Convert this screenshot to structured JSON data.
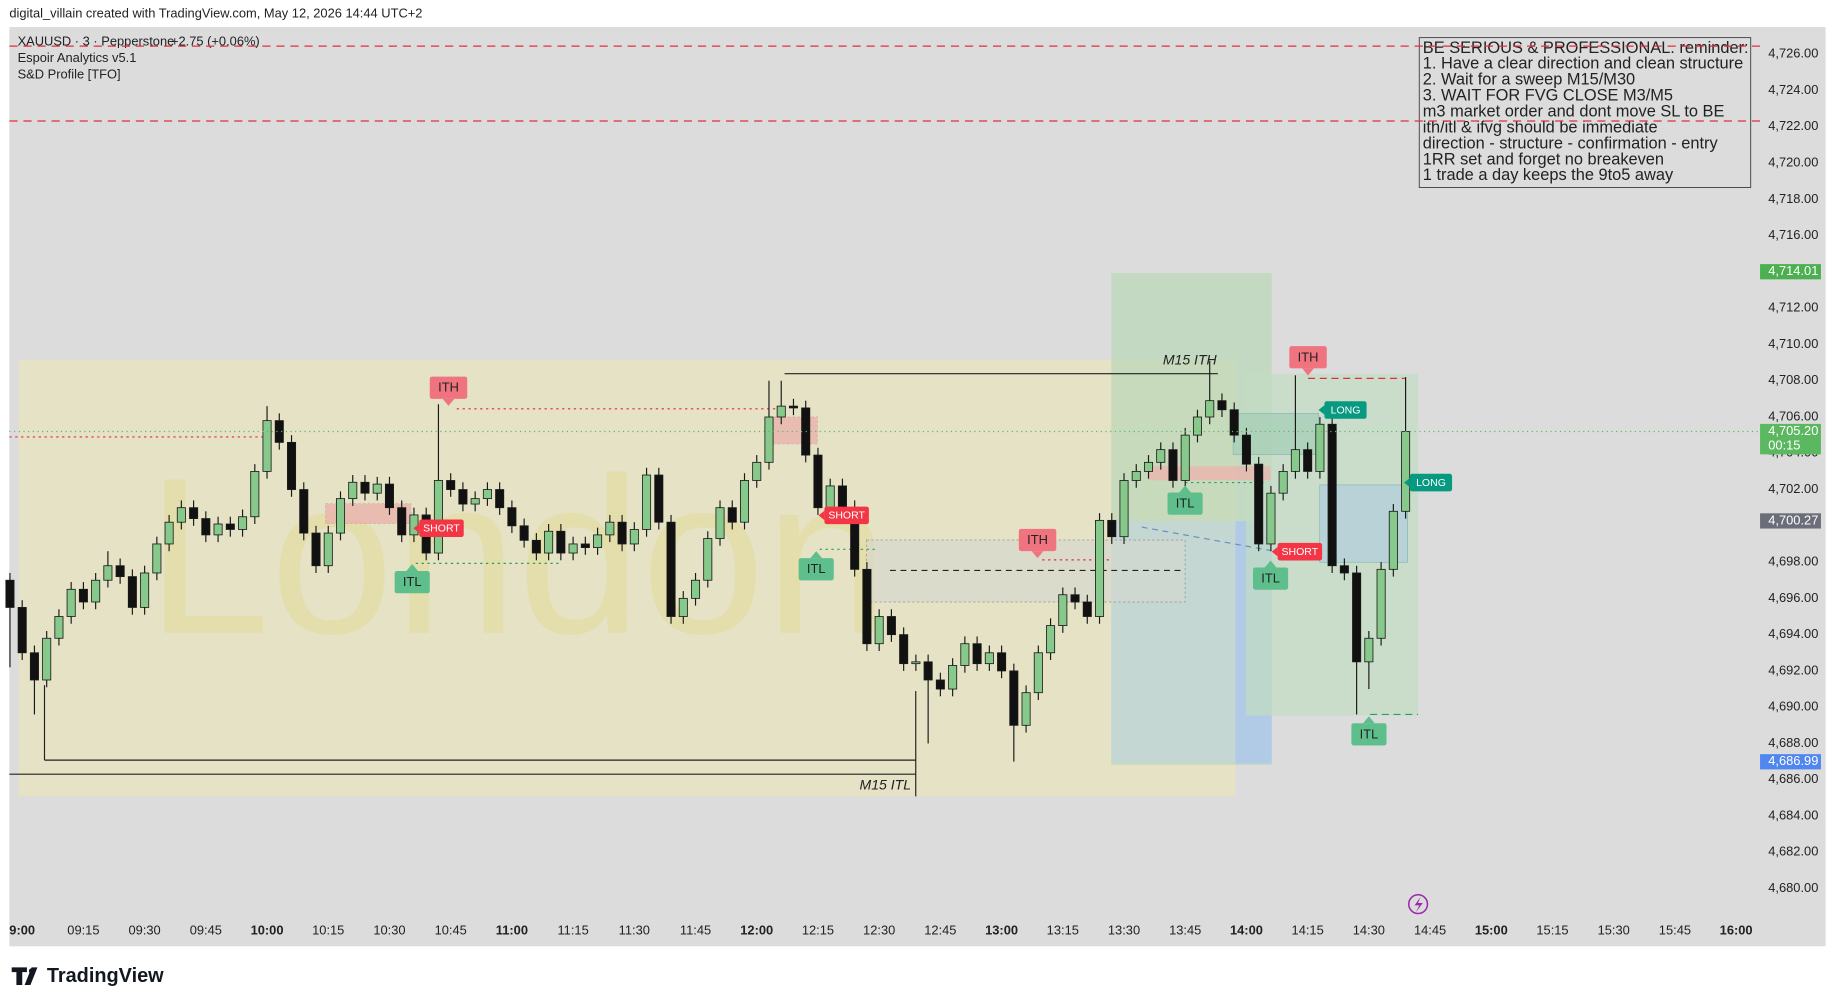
{
  "header": "digital_villain created with TradingView.com, May 12, 2026 14:44 UTC+2",
  "legend": {
    "symbol": "XAUUSD · 3 · Pepperstone",
    "change": "+2.75 (+0.06%)",
    "indicators": [
      "Espoir Analytics v5.1",
      "S&D Profile [TFO]"
    ]
  },
  "brand": "TradingView",
  "chart_data": {
    "type": "candlestick",
    "x": [
      "08:57",
      "09:00",
      "09:03",
      "09:06",
      "09:09",
      "09:12",
      "09:15",
      "09:18",
      "09:21",
      "09:24",
      "09:27",
      "09:30",
      "09:33",
      "09:36",
      "09:39",
      "09:42",
      "09:45",
      "09:48",
      "09:51",
      "09:54",
      "09:57",
      "10:00",
      "10:03",
      "10:06",
      "10:09",
      "10:12",
      "10:15",
      "10:18",
      "10:21",
      "10:24",
      "10:27",
      "10:30",
      "10:33",
      "10:36",
      "10:39",
      "10:42",
      "10:45",
      "10:48",
      "10:51",
      "10:54",
      "10:57",
      "11:00",
      "11:03",
      "11:06",
      "11:09",
      "11:12",
      "11:15",
      "11:18",
      "11:21",
      "11:24",
      "11:27",
      "11:30",
      "11:33",
      "11:36",
      "11:39",
      "11:42",
      "11:45",
      "11:48",
      "11:51",
      "11:54",
      "11:57",
      "12:00",
      "12:03",
      "12:06",
      "12:09",
      "12:12",
      "12:15",
      "12:18",
      "12:21",
      "12:24",
      "12:27",
      "12:30",
      "12:33",
      "12:36",
      "12:39",
      "12:42",
      "12:45",
      "12:48",
      "12:51",
      "12:54",
      "12:57",
      "13:00",
      "13:03",
      "13:06",
      "13:09",
      "13:12",
      "13:15",
      "13:18",
      "13:21",
      "13:24",
      "13:27",
      "13:30",
      "13:33",
      "13:36",
      "13:39",
      "13:42",
      "13:45",
      "13:48",
      "13:51",
      "13:54",
      "13:57",
      "14:00",
      "14:03",
      "14:06",
      "14:09",
      "14:12",
      "14:15",
      "14:18",
      "14:21",
      "14:24",
      "14:27",
      "14:30",
      "14:33",
      "14:36",
      "14:39"
    ],
    "open": [
      4697.0,
      4695.5,
      4693.0,
      4691.5,
      4693.8,
      4695.0,
      4696.5,
      4695.8,
      4697.0,
      4697.8,
      4697.2,
      4695.5,
      4697.4,
      4699.0,
      4700.2,
      4701.0,
      4700.4,
      4699.5,
      4700.1,
      4699.8,
      4700.5,
      4703.0,
      4705.8,
      4704.6,
      4702.0,
      4699.6,
      4697.8,
      4699.6,
      4701.5,
      4702.4,
      4701.8,
      4702.3,
      4701.0,
      4699.5,
      4700.6,
      4698.5,
      4702.5,
      4702.0,
      4701.2,
      4701.5,
      4702.0,
      4701.0,
      4700.0,
      4699.2,
      4698.5,
      4699.7,
      4698.5,
      4699.0,
      4698.8,
      4699.5,
      4700.2,
      4699.0,
      4699.8,
      4702.8,
      4700.2,
      4695.0,
      4696.0,
      4697.0,
      4699.3,
      4701.0,
      4700.2,
      4702.5,
      4703.5,
      4706.0,
      4706.6,
      4706.5,
      4703.9,
      4701.0,
      4702.2,
      4701.0,
      4697.6,
      4693.5,
      4695.0,
      4694.0,
      4692.4,
      4692.5,
      4691.5,
      4691.0,
      4692.3,
      4693.5,
      4692.4,
      4693.0,
      4692.0,
      4689.0,
      4690.8,
      4693.0,
      4694.5,
      4696.2,
      4695.8,
      4695.0,
      4700.3,
      4699.4,
      4702.5,
      4703.0,
      4703.5,
      4704.2,
      4702.5,
      4705.0,
      4706.0,
      4706.9,
      4706.4,
      4705.0,
      4703.4,
      4699.0,
      4701.8,
      4703.0,
      4704.2,
      4703.0,
      4705.6,
      4697.8,
      4697.4,
      4692.5,
      4693.8,
      4697.6,
      4700.8
    ],
    "high": [
      4697.4,
      4695.9,
      4693.4,
      4694.2,
      4695.4,
      4696.9,
      4696.9,
      4697.4,
      4698.6,
      4698.2,
      4697.6,
      4697.8,
      4699.4,
      4700.6,
      4701.4,
      4701.4,
      4700.8,
      4700.5,
      4700.5,
      4700.9,
      4703.4,
      4706.6,
      4706.2,
      4705.0,
      4702.4,
      4700.0,
      4700.0,
      4701.9,
      4702.8,
      4702.8,
      4702.7,
      4702.7,
      4701.4,
      4701.0,
      4701.0,
      4706.7,
      4702.9,
      4702.4,
      4701.9,
      4702.4,
      4702.4,
      4701.4,
      4700.4,
      4699.6,
      4700.1,
      4700.1,
      4699.4,
      4699.4,
      4699.9,
      4700.6,
      4700.6,
      4700.2,
      4703.2,
      4703.2,
      4700.6,
      4696.4,
      4697.4,
      4699.7,
      4701.4,
      4701.4,
      4702.9,
      4703.9,
      4708.0,
      4708.0,
      4707.0,
      4706.9,
      4704.3,
      4702.6,
      4702.6,
      4701.4,
      4698.0,
      4695.4,
      4695.4,
      4694.4,
      4692.9,
      4692.9,
      4691.9,
      4692.7,
      4693.9,
      4693.9,
      4693.4,
      4693.4,
      4692.4,
      4691.2,
      4693.4,
      4694.9,
      4696.6,
      4696.6,
      4696.2,
      4700.7,
      4700.7,
      4702.9,
      4703.4,
      4703.9,
      4704.6,
      4704.6,
      4705.4,
      4706.4,
      4709.1,
      4707.3,
      4706.8,
      4705.4,
      4703.8,
      4702.2,
      4703.4,
      4708.3,
      4704.6,
      4706.0,
      4706.0,
      4698.2,
      4697.8,
      4694.2,
      4698.0,
      4701.2,
      4708.2
    ],
    "low": [
      4692.2,
      4692.6,
      4689.6,
      4691.1,
      4693.4,
      4694.6,
      4695.4,
      4695.4,
      4696.6,
      4696.8,
      4695.1,
      4695.1,
      4697.0,
      4698.6,
      4699.8,
      4700.0,
      4699.1,
      4699.1,
      4699.4,
      4699.4,
      4700.1,
      4702.6,
      4704.2,
      4701.6,
      4699.2,
      4697.4,
      4697.4,
      4699.2,
      4701.1,
      4701.4,
      4701.4,
      4700.6,
      4699.1,
      4699.1,
      4698.1,
      4698.1,
      4701.6,
      4700.8,
      4700.8,
      4701.1,
      4700.6,
      4699.6,
      4698.8,
      4698.1,
      4698.1,
      4698.1,
      4698.1,
      4698.4,
      4698.4,
      4699.1,
      4698.6,
      4698.6,
      4699.4,
      4699.8,
      4694.6,
      4694.6,
      4695.6,
      4696.6,
      4698.9,
      4699.8,
      4699.8,
      4702.1,
      4703.1,
      4705.6,
      4706.1,
      4703.5,
      4700.6,
      4700.6,
      4700.6,
      4697.2,
      4693.1,
      4693.1,
      4693.6,
      4692.0,
      4692.0,
      4688.0,
      4690.6,
      4690.6,
      4691.9,
      4692.0,
      4692.0,
      4691.6,
      4687.0,
      4688.6,
      4690.4,
      4692.6,
      4694.1,
      4695.4,
      4694.6,
      4694.6,
      4699.0,
      4699.0,
      4702.1,
      4702.6,
      4703.1,
      4702.1,
      4702.1,
      4704.6,
      4705.6,
      4706.0,
      4704.6,
      4703.0,
      4698.6,
      4698.6,
      4701.4,
      4702.6,
      4702.6,
      4702.6,
      4697.4,
      4697.0,
      4689.6,
      4691.0,
      4693.4,
      4697.2,
      4700.4
    ],
    "close": [
      4695.5,
      4693.0,
      4691.5,
      4693.8,
      4695.0,
      4696.5,
      4695.8,
      4697.0,
      4697.8,
      4697.2,
      4695.5,
      4697.4,
      4699.0,
      4700.2,
      4701.0,
      4700.4,
      4699.5,
      4700.1,
      4699.8,
      4700.5,
      4703.0,
      4705.8,
      4704.6,
      4702.0,
      4699.6,
      4697.8,
      4699.6,
      4701.5,
      4702.4,
      4701.8,
      4702.3,
      4701.0,
      4699.5,
      4700.6,
      4698.5,
      4702.5,
      4702.0,
      4701.2,
      4701.5,
      4702.0,
      4701.0,
      4700.0,
      4699.2,
      4698.5,
      4699.7,
      4698.5,
      4699.0,
      4698.8,
      4699.5,
      4700.2,
      4699.0,
      4699.8,
      4702.8,
      4700.2,
      4695.0,
      4696.0,
      4697.0,
      4699.3,
      4701.0,
      4700.2,
      4702.5,
      4703.5,
      4706.0,
      4706.6,
      4706.5,
      4703.9,
      4701.0,
      4702.2,
      4701.0,
      4697.6,
      4693.5,
      4695.0,
      4694.0,
      4692.4,
      4692.5,
      4691.5,
      4691.0,
      4692.3,
      4693.5,
      4692.4,
      4693.0,
      4692.0,
      4689.0,
      4690.8,
      4693.0,
      4694.5,
      4696.2,
      4695.8,
      4695.0,
      4700.3,
      4699.4,
      4702.5,
      4703.0,
      4703.5,
      4704.2,
      4702.5,
      4705.0,
      4706.0,
      4706.9,
      4706.4,
      4705.0,
      4703.4,
      4699.0,
      4701.8,
      4703.0,
      4704.2,
      4703.0,
      4705.6,
      4697.8,
      4697.4,
      4692.5,
      4693.8,
      4697.6,
      4700.8,
      4705.2
    ],
    "up_color": "#86c98a",
    "down_color": "#111111",
    "wick_color": "#1a1a1a",
    "xlim": [
      "08:57",
      "16:05"
    ],
    "xticks": [
      "9:00",
      "09:15",
      "09:30",
      "09:45",
      "10:00",
      "10:15",
      "10:30",
      "10:45",
      "11:00",
      "11:15",
      "11:30",
      "11:45",
      "12:00",
      "12:15",
      "12:30",
      "12:45",
      "13:00",
      "13:15",
      "13:30",
      "13:45",
      "14:00",
      "14:15",
      "14:30",
      "14:45",
      "15:00",
      "15:15",
      "15:30",
      "15:45",
      "16:00"
    ],
    "ylim": [
      4678.3,
      4727.5
    ],
    "yticks": [
      {
        "value": 4726,
        "label": "4,726.00"
      },
      {
        "value": 4724,
        "label": "4,724.00"
      },
      {
        "value": 4722,
        "label": "4,722.00"
      },
      {
        "value": 4720,
        "label": "4,720.00"
      },
      {
        "value": 4718,
        "label": "4,718.00"
      },
      {
        "value": 4716,
        "label": "4,716.00"
      },
      {
        "value": 4712,
        "label": "4,712.00"
      },
      {
        "value": 4710,
        "label": "4,710.00"
      },
      {
        "value": 4708,
        "label": "4,708.00"
      },
      {
        "value": 4706,
        "label": "4,706.00"
      },
      {
        "value": 4704,
        "label": "4,704.00"
      },
      {
        "value": 4702,
        "label": "4,702.00"
      },
      {
        "value": 4698,
        "label": "4,698.00"
      },
      {
        "value": 4696,
        "label": "4,696.00"
      },
      {
        "value": 4694,
        "label": "4,694.00"
      },
      {
        "value": 4692,
        "label": "4,692.00"
      },
      {
        "value": 4690,
        "label": "4,690.00"
      },
      {
        "value": 4688,
        "label": "4,688.00"
      },
      {
        "value": 4686,
        "label": "4,686.00"
      },
      {
        "value": 4684,
        "label": "4,684.00"
      },
      {
        "value": 4682,
        "label": "4,682.00"
      },
      {
        "value": 4680,
        "label": "4,680.00"
      }
    ],
    "levels": [
      {
        "value": 4726.45,
        "color": "#e0303f"
      },
      {
        "value": 4722.32,
        "color": "#e0303f"
      }
    ],
    "price_labels": [
      {
        "value": 4714.01,
        "label": "4,714.01",
        "color": "#4caf50"
      },
      {
        "value": 4705.2,
        "label": "4,705.20",
        "sub": "00:15",
        "color": "#5cb860",
        "line": true
      },
      {
        "value": 4700.27,
        "label": "4,700.27",
        "color": "#6b6e78"
      },
      {
        "value": 4686.99,
        "label": "4,686.99",
        "color": "#4f86f0"
      }
    ],
    "annotations": [
      "ITH",
      "ITL",
      "SHORT",
      "SHORT",
      "ITL",
      "ITH",
      "ITL",
      "ITH",
      "LONG",
      "SHORT",
      "ITL",
      "LONG",
      "ITL",
      "M15 ITH",
      "M15 ITL"
    ],
    "watermark": "London",
    "note": [
      "BE SERIOUS & PROFESSIONAL. reminder:",
      "1. Have a clear direction and clean structure",
      "2. Wait for a sweep M15/M30",
      "3. WAIT FOR FVG CLOSE M3/M5",
      "m3 market order and dont move SL to BE",
      "ith/itl & ifvg should be immediate",
      "direction - structure - confirmation - entry",
      "1RR set and forget no breakeven",
      "1 trade a day keeps the 9to5 away"
    ]
  }
}
